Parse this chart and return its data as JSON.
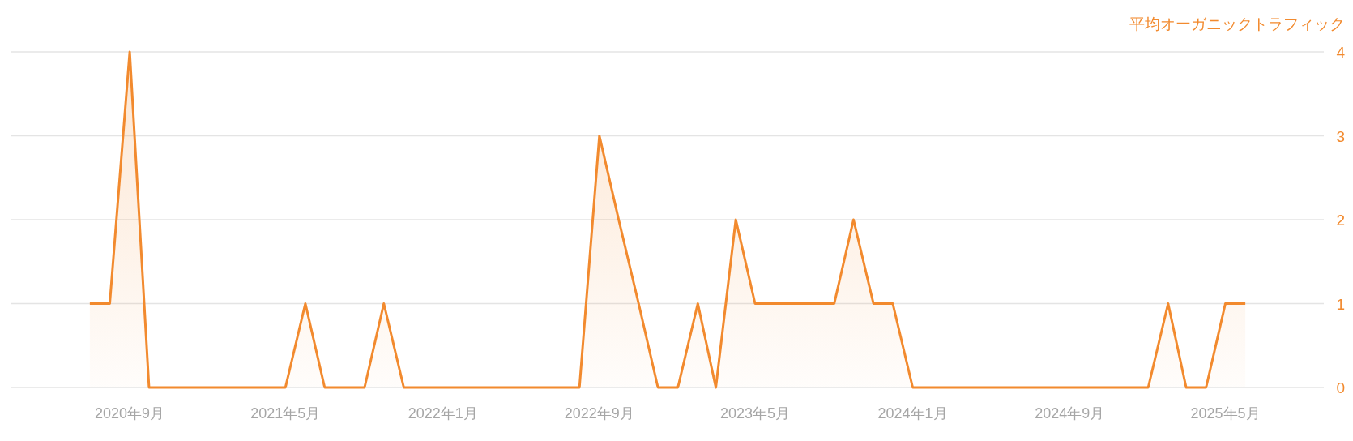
{
  "chart_data": {
    "type": "area",
    "ylabel": "平均オーガニックトラフィック",
    "color": "#f28a2e",
    "grid": "y",
    "x": [
      "2020-07",
      "2020-08",
      "2020-09",
      "2020-10",
      "2020-11",
      "2020-12",
      "2021-01",
      "2021-02",
      "2021-03",
      "2021-04",
      "2021-05",
      "2021-06",
      "2021-07",
      "2021-08",
      "2021-09",
      "2021-10",
      "2021-11",
      "2021-12",
      "2022-01",
      "2022-02",
      "2022-03",
      "2022-04",
      "2022-05",
      "2022-06",
      "2022-07",
      "2022-08",
      "2022-09",
      "2022-10",
      "2022-11",
      "2022-12",
      "2023-01",
      "2023-02",
      "2023-03",
      "2023-04",
      "2023-05",
      "2023-06",
      "2023-07",
      "2023-08",
      "2023-09",
      "2023-10",
      "2023-11",
      "2023-12",
      "2024-01",
      "2024-02",
      "2024-03",
      "2024-04",
      "2024-05",
      "2024-06",
      "2024-07",
      "2024-08",
      "2024-09",
      "2024-10",
      "2024-11",
      "2024-12",
      "2025-01",
      "2025-02",
      "2025-03",
      "2025-04",
      "2025-05",
      "2025-06"
    ],
    "values": [
      1,
      1,
      4,
      0,
      0,
      0,
      0,
      0,
      0,
      0,
      0,
      1,
      0,
      0,
      0,
      1,
      0,
      0,
      0,
      0,
      0,
      0,
      0,
      0,
      0,
      0,
      3,
      2,
      1,
      0,
      0,
      1,
      0,
      2,
      1,
      1,
      1,
      1,
      1,
      2,
      1,
      1,
      0,
      0,
      0,
      0,
      0,
      0,
      0,
      0,
      0,
      0,
      0,
      0,
      0,
      1,
      0,
      0,
      1,
      1
    ],
    "xlim": [
      "2020-03",
      "2025-10"
    ],
    "ylim": [
      0,
      4
    ],
    "yticks": [
      0,
      1,
      2,
      3,
      4
    ],
    "xticks": [
      {
        "value": "2020-09",
        "label": "2020年9月"
      },
      {
        "value": "2021-05",
        "label": "2021年5月"
      },
      {
        "value": "2022-01",
        "label": "2022年1月"
      },
      {
        "value": "2022-09",
        "label": "2022年9月"
      },
      {
        "value": "2023-05",
        "label": "2023年5月"
      },
      {
        "value": "2024-01",
        "label": "2024年1月"
      },
      {
        "value": "2024-09",
        "label": "2024年9月"
      },
      {
        "value": "2025-05",
        "label": "2025年5月"
      }
    ]
  }
}
